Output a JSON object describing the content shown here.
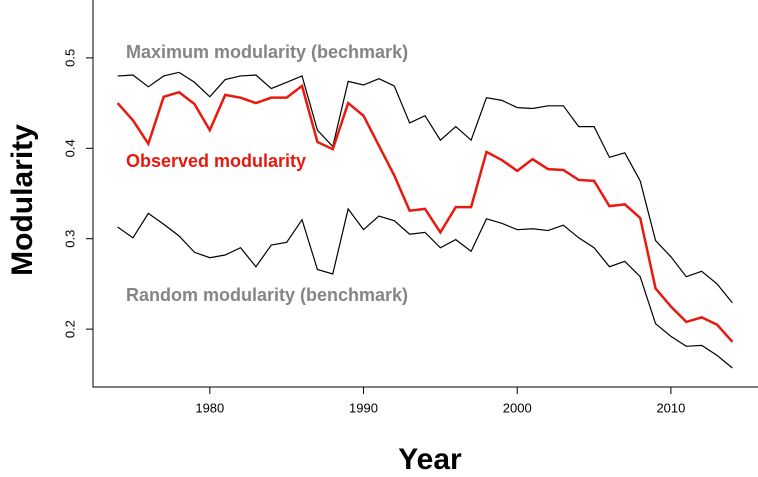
{
  "chart_data": {
    "type": "line",
    "x": [
      1974,
      1975,
      1976,
      1977,
      1978,
      1979,
      1980,
      1981,
      1982,
      1983,
      1984,
      1985,
      1986,
      1987,
      1988,
      1989,
      1990,
      1991,
      1992,
      1993,
      1994,
      1995,
      1996,
      1997,
      1998,
      1999,
      2000,
      2001,
      2002,
      2003,
      2004,
      2005,
      2006,
      2007,
      2008,
      2009,
      2010,
      2011,
      2012,
      2013,
      2014
    ],
    "series": [
      {
        "name": "Maximum modularity (bechmark)",
        "color": "#000000",
        "label_color": "#858585",
        "values": [
          0.48,
          0.481,
          0.468,
          0.48,
          0.484,
          0.473,
          0.457,
          0.476,
          0.48,
          0.481,
          0.466,
          0.473,
          0.48,
          0.42,
          0.402,
          0.474,
          0.47,
          0.477,
          0.469,
          0.428,
          0.436,
          0.409,
          0.424,
          0.409,
          0.456,
          0.453,
          0.445,
          0.444,
          0.447,
          0.447,
          0.424,
          0.424,
          0.39,
          0.395,
          0.364,
          0.298,
          0.28,
          0.258,
          0.264,
          0.25,
          0.229
        ]
      },
      {
        "name": "Observed modularity",
        "color": "#e8190e",
        "label_color": "#e8190e",
        "values": [
          0.45,
          0.431,
          0.405,
          0.457,
          0.462,
          0.449,
          0.42,
          0.459,
          0.456,
          0.45,
          0.456,
          0.456,
          0.469,
          0.407,
          0.399,
          0.45,
          0.436,
          0.403,
          0.37,
          0.331,
          0.333,
          0.307,
          0.335,
          0.335,
          0.396,
          0.387,
          0.375,
          0.388,
          0.377,
          0.376,
          0.365,
          0.364,
          0.336,
          0.338,
          0.323,
          0.245,
          0.225,
          0.208,
          0.213,
          0.205,
          0.186
        ]
      },
      {
        "name": "Random modularity (benchmark)",
        "color": "#000000",
        "label_color": "#858585",
        "values": [
          0.313,
          0.301,
          0.328,
          0.316,
          0.303,
          0.285,
          0.279,
          0.282,
          0.29,
          0.269,
          0.293,
          0.296,
          0.321,
          0.266,
          0.261,
          0.333,
          0.31,
          0.325,
          0.32,
          0.305,
          0.307,
          0.29,
          0.299,
          0.286,
          0.322,
          0.317,
          0.31,
          0.311,
          0.309,
          0.315,
          0.301,
          0.29,
          0.269,
          0.275,
          0.258,
          0.206,
          0.192,
          0.181,
          0.182,
          0.171,
          0.157
        ]
      }
    ],
    "xlabel": "Year",
    "ylabel": "Modularity",
    "xlim": [
      1972.4,
      2015.6
    ],
    "ylim": [
      0.136,
      0.564
    ],
    "xticks": [
      1980,
      1990,
      2000,
      2010
    ],
    "yticks": [
      0.2,
      0.3,
      0.4,
      0.5
    ]
  }
}
